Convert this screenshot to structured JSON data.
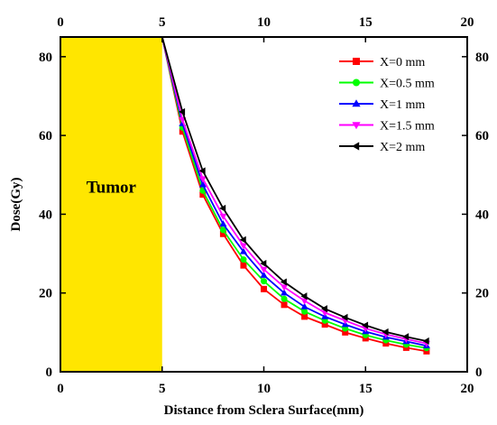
{
  "chart_data": {
    "type": "line",
    "title": "",
    "xlabel": "Distance from Sclera Surface(mm)",
    "ylabel": "Dose(Gy)",
    "xlim": [
      0,
      20
    ],
    "ylim": [
      0,
      85
    ],
    "xticks": [
      0,
      5,
      10,
      15,
      20
    ],
    "yticks": [
      0,
      20,
      40,
      60,
      80
    ],
    "top_axis_ticks": [
      0,
      5,
      10,
      15,
      20
    ],
    "right_axis_ticks": [
      0,
      20,
      40,
      60,
      80
    ],
    "grid": false,
    "legend_position": "top-right",
    "annotation": {
      "text": "Tumor",
      "x_range": [
        0,
        5
      ],
      "color": "#FFE600"
    },
    "x": [
      5,
      6,
      7,
      8,
      9,
      10,
      11,
      12,
      13,
      14,
      15,
      16,
      17,
      18
    ],
    "series": [
      {
        "name": "X=0 mm",
        "color": "#FF0000",
        "marker": "square",
        "values": [
          85,
          61,
          45,
          35,
          27,
          21,
          17,
          14,
          12,
          10,
          8.5,
          7.2,
          6.1,
          5.2
        ]
      },
      {
        "name": "X=0.5 mm",
        "color": "#00FF00",
        "marker": "circle",
        "values": [
          85,
          62,
          46,
          36,
          28.5,
          23,
          18.5,
          15.3,
          13,
          11,
          9.3,
          8,
          6.9,
          6
        ]
      },
      {
        "name": "X=1 mm",
        "color": "#0000FF",
        "marker": "triangle-up",
        "values": [
          85,
          63,
          47.5,
          37.5,
          30.5,
          24.5,
          20,
          16.5,
          14,
          12,
          10.2,
          8.8,
          7.7,
          6.6
        ]
      },
      {
        "name": "X=1.5 mm",
        "color": "#FF00FF",
        "marker": "triangle-down",
        "values": [
          85,
          64,
          49,
          39.5,
          32,
          26,
          21.5,
          18,
          15,
          13,
          11,
          9.5,
          8.3,
          7.2
        ]
      },
      {
        "name": "X=2 mm",
        "color": "#000000",
        "marker": "triangle-left",
        "values": [
          85,
          66,
          51,
          41.5,
          33.5,
          27.5,
          22.8,
          19.2,
          16,
          13.8,
          11.8,
          10.1,
          8.9,
          7.8
        ]
      }
    ]
  }
}
